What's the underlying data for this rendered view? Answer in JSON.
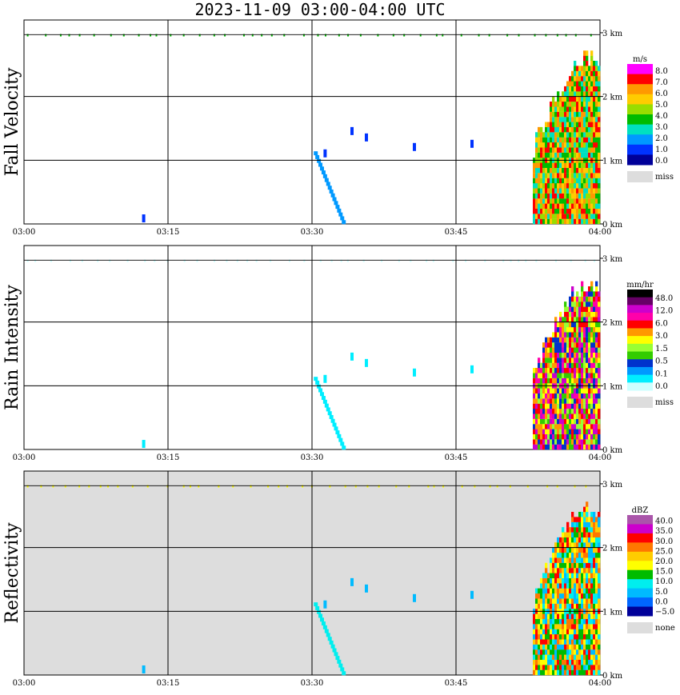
{
  "title": "2023-11-09   03:00-04:00 UTC",
  "chart_data": [
    {
      "type": "heatmap",
      "ylabel": "Fall Velocity",
      "x_ticks": [
        "03:00",
        "03:15",
        "03:30",
        "03:45",
        "04:00"
      ],
      "y_ticks": [
        "0 km",
        "1 km",
        "2 km",
        "3 km"
      ],
      "xlim": [
        0,
        60
      ],
      "ylim": [
        0,
        3.2
      ],
      "background": "#ffffff",
      "legend": {
        "unit": "m/s",
        "labels": [
          "8.0",
          "7.0",
          "6.0",
          "5.0",
          "4.0",
          "3.0",
          "2.0",
          "1.0",
          "0.0"
        ],
        "colors": [
          "#ff00ff",
          "#ff0000",
          "#ff9900",
          "#ffcc00",
          "#99dd00",
          "#00bb00",
          "#00e0c0",
          "#0099ff",
          "#0033ff",
          "#000099"
        ],
        "miss_label": "miss",
        "miss_color": "#dddddd"
      }
    },
    {
      "type": "heatmap",
      "ylabel": "Rain Intensity",
      "x_ticks": [
        "03:00",
        "03:15",
        "03:30",
        "03:45",
        "04:00"
      ],
      "y_ticks": [
        "0 km",
        "1 km",
        "2 km",
        "3 km"
      ],
      "xlim": [
        0,
        60
      ],
      "ylim": [
        0,
        3.2
      ],
      "background": "#ffffff",
      "legend": {
        "unit": "mm/hr",
        "labels": [
          "48.0",
          "12.0",
          "6.0",
          "3.0",
          "1.5",
          "0.5",
          "0.1",
          "0.0"
        ],
        "colors": [
          "#000000",
          "#660066",
          "#cc00cc",
          "#ff00aa",
          "#ff0000",
          "#ff9900",
          "#ffff00",
          "#99ff33",
          "#33cc00",
          "#0033cc",
          "#0099ff",
          "#00eeff",
          "#ccffff"
        ],
        "miss_label": "miss",
        "miss_color": "#dddddd"
      }
    },
    {
      "type": "heatmap",
      "ylabel": "Reflectivity",
      "x_ticks": [
        "03:00",
        "03:15",
        "03:30",
        "03:45",
        "04:00"
      ],
      "y_ticks": [
        "0 km",
        "1 km",
        "2 km",
        "3 km"
      ],
      "xlim": [
        0,
        60
      ],
      "ylim": [
        0,
        3.2
      ],
      "background": "#dddddd",
      "legend": {
        "unit": "dBZ",
        "labels": [
          "40.0",
          "35.0",
          "30.0",
          "25.0",
          "20.0",
          "15.0",
          "10.0",
          "5.0",
          "0.0",
          "−5.0"
        ],
        "colors": [
          "#aa55aa",
          "#cc00cc",
          "#ff0000",
          "#ff7700",
          "#ffcc00",
          "#ffff00",
          "#00bb00",
          "#00eeee",
          "#00bbff",
          "#0066ff",
          "#000099"
        ],
        "miss_label": "none",
        "miss_color": "#dddddd"
      }
    }
  ]
}
